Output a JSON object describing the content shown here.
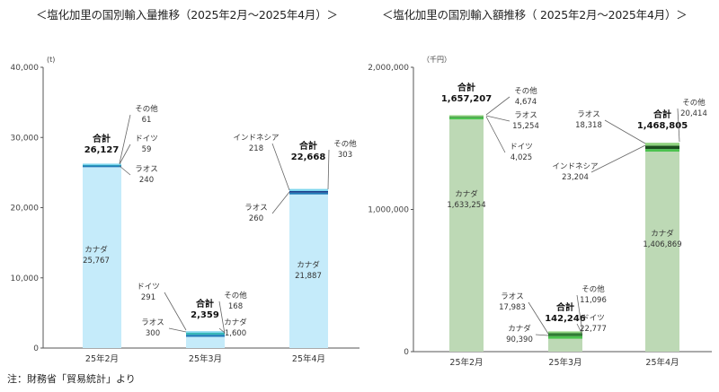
{
  "footnote": "注：財務省「貿易統計」より",
  "chart_data": [
    {
      "type": "bar",
      "stacked": true,
      "title": "＜塩化加里の国別輸入量推移（2025年2月～2025年4月）＞",
      "unit": "(t)",
      "categories": [
        "25年2月",
        "25年3月",
        "25年4月"
      ],
      "ylim": [
        0,
        40000
      ],
      "yticks": [
        "0",
        "10,000",
        "20,000",
        "30,000",
        "40,000"
      ],
      "yticks_values": [
        0,
        10000,
        20000,
        30000,
        40000
      ],
      "total_label": "合計",
      "totals": [
        26127,
        2359,
        22668
      ],
      "totals_text": [
        "26,127",
        "2,359",
        "22,668"
      ],
      "series": [
        {
          "name": "カナダ",
          "values": [
            25767,
            1600,
            21887
          ],
          "color": "#c5ebfa"
        },
        {
          "name": "ラオス",
          "values": [
            240,
            300,
            260
          ],
          "color": "#1f7ab8"
        },
        {
          "name": "ドイツ",
          "values": [
            59,
            291,
            0
          ],
          "color": "#36b8b8"
        },
        {
          "name": "インドネシア",
          "values": [
            0,
            0,
            218
          ],
          "color": "#1b3f8c"
        },
        {
          "name": "その他",
          "values": [
            61,
            168,
            303
          ],
          "color": "#7fd6ee"
        }
      ],
      "annotations": [
        {
          "name": "カナダ",
          "value": "25,767",
          "bar": 0
        },
        {
          "name": "ラオス",
          "value": "240",
          "bar": 0
        },
        {
          "name": "ドイツ",
          "value": "59",
          "bar": 0
        },
        {
          "name": "その他",
          "value": "61",
          "bar": 0
        },
        {
          "name": "ドイツ",
          "value": "291",
          "bar": 1
        },
        {
          "name": "ラオス",
          "value": "300",
          "bar": 1
        },
        {
          "name": "その他",
          "value": "168",
          "bar": 1
        },
        {
          "name": "カナダ",
          "value": "1,600",
          "bar": 1
        },
        {
          "name": "インドネシア",
          "value": "218",
          "bar": 2
        },
        {
          "name": "ラオス",
          "value": "260",
          "bar": 2
        },
        {
          "name": "その他",
          "value": "303",
          "bar": 2
        },
        {
          "name": "カナダ",
          "value": "21,887",
          "bar": 2
        }
      ],
      "grid": false
    },
    {
      "type": "bar",
      "stacked": true,
      "title": "＜塩化加里の国別輸入額推移（ 2025年2月～2025年4月）＞",
      "unit": "（千円）",
      "categories": [
        "25年2月",
        "25年3月",
        "25年4月"
      ],
      "ylim": [
        0,
        2000000
      ],
      "yticks": [
        "0",
        "1,000,000",
        "2,000,000"
      ],
      "yticks_values": [
        0,
        1000000,
        2000000
      ],
      "total_label": "合計",
      "totals": [
        1657207,
        142246,
        1468805
      ],
      "totals_text": [
        "1,657,207",
        "142,246",
        "1,468,805"
      ],
      "series": [
        {
          "name": "カナダ",
          "values": [
            1633254,
            90390,
            1406869
          ],
          "color": "#bdd9b5"
        },
        {
          "name": "ラオス",
          "values": [
            15254,
            17983,
            18318
          ],
          "color": "#4cc34f"
        },
        {
          "name": "ドイツ",
          "values": [
            4025,
            22777,
            0
          ],
          "color": "#2e7d32"
        },
        {
          "name": "インドネシア",
          "values": [
            0,
            0,
            23204
          ],
          "color": "#1b4d1e"
        },
        {
          "name": "その他",
          "values": [
            4674,
            11096,
            20414
          ],
          "color": "#8ed27e"
        }
      ],
      "annotations": [
        {
          "name": "その他",
          "value": "4,674",
          "bar": 0
        },
        {
          "name": "ラオス",
          "value": "15,254",
          "bar": 0
        },
        {
          "name": "ドイツ",
          "value": "4,025",
          "bar": 0
        },
        {
          "name": "カナダ",
          "value": "1,633,254",
          "bar": 0
        },
        {
          "name": "ラオス",
          "value": "17,983",
          "bar": 1
        },
        {
          "name": "その他",
          "value": "11,096",
          "bar": 1
        },
        {
          "name": "カナダ",
          "value": "90,390",
          "bar": 1
        },
        {
          "name": "ドイツ",
          "value": "22,777",
          "bar": 1
        },
        {
          "name": "ラオス",
          "value": "18,318",
          "bar": 2
        },
        {
          "name": "その他",
          "value": "20,414",
          "bar": 2
        },
        {
          "name": "インドネシア",
          "value": "23,204",
          "bar": 2
        },
        {
          "name": "カナダ",
          "value": "1,406,869",
          "bar": 2
        }
      ],
      "grid": false
    }
  ]
}
